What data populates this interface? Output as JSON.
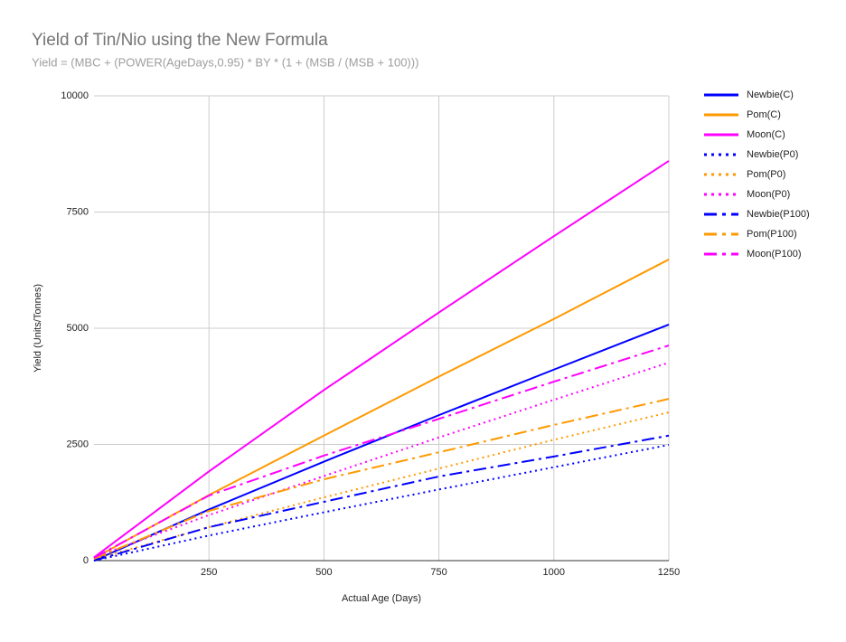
{
  "chart_data": {
    "type": "line",
    "title": "Yield of Tin/Nio using the New Formula",
    "subtitle": "Yield = (MBC + (POWER(AgeDays,0.95) * BY * (1 + (MSB / (MSB + 100)))",
    "x_label": "Actual Age (Days)",
    "y_label": "Yield (Units/Tonnes)",
    "x": [
      0,
      250,
      500,
      750,
      1000,
      1250
    ],
    "xlim": [
      0,
      1250
    ],
    "xticks": [
      250,
      500,
      750,
      1000,
      1250
    ],
    "ylim": [
      0,
      10000
    ],
    "yticks": [
      0,
      2500,
      5000,
      7500,
      10000
    ],
    "grid": true,
    "legend": "right",
    "series": [
      {
        "name": "Newbie(C)",
        "color": "#0000ff",
        "line_style": "solid",
        "values": [
          0,
          1100,
          2130,
          3130,
          4110,
          5080
        ]
      },
      {
        "name": "Pom(C)",
        "color": "#ff9900",
        "line_style": "solid",
        "values": [
          50,
          1410,
          2690,
          3960,
          5200,
          6480
        ]
      },
      {
        "name": "Moon(C)",
        "color": "#ff00ff",
        "line_style": "solid",
        "values": [
          70,
          1920,
          3670,
          5340,
          6980,
          8600
        ]
      },
      {
        "name": "Newbie(P0)",
        "color": "#0000ff",
        "line_style": "dotted",
        "values": [
          0,
          540,
          1040,
          1530,
          2010,
          2490
        ]
      },
      {
        "name": "Pom(P0)",
        "color": "#ff9900",
        "line_style": "dotted",
        "values": [
          30,
          720,
          1360,
          1980,
          2600,
          3190
        ]
      },
      {
        "name": "Moon(P0)",
        "color": "#ff00ff",
        "line_style": "dotted",
        "values": [
          70,
          980,
          1820,
          2650,
          3460,
          4260
        ]
      },
      {
        "name": "Newbie(P100)",
        "color": "#0000ff",
        "line_style": "dashdot",
        "values": [
          0,
          720,
          1265,
          1810,
          2240,
          2690
        ]
      },
      {
        "name": "Pom(P100)",
        "color": "#ff9900",
        "line_style": "dashdot",
        "values": [
          40,
          1070,
          1750,
          2330,
          2920,
          3480
        ]
      },
      {
        "name": "Moon(P100)",
        "color": "#ff00ff",
        "line_style": "dashdot",
        "values": [
          60,
          1400,
          2260,
          3050,
          3850,
          4630
        ]
      }
    ]
  }
}
